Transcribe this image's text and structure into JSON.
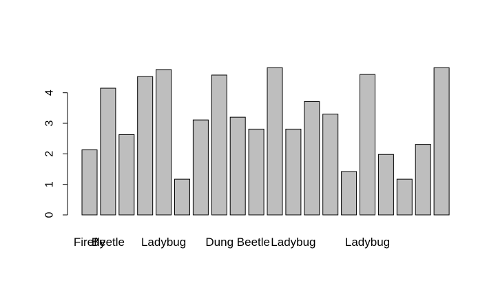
{
  "chart_data": {
    "type": "bar",
    "title": "",
    "xlabel": "",
    "ylabel": "",
    "ylim": [
      0,
      5
    ],
    "yticks": [
      0,
      1,
      2,
      3,
      4
    ],
    "bar_color": "#bebebe",
    "bar_border_color": "#000000",
    "categories": [
      "Firefly",
      "Beetle",
      "",
      "",
      "Ladybug",
      "",
      "",
      "",
      "Dung Beetle",
      "",
      "",
      "Ladybug",
      "",
      "",
      "",
      "Ladybug",
      "",
      "",
      "",
      ""
    ],
    "values": [
      2.13,
      4.15,
      2.63,
      4.53,
      4.76,
      1.17,
      3.11,
      4.58,
      3.2,
      2.81,
      4.82,
      2.81,
      3.71,
      3.3,
      1.42,
      4.6,
      1.98,
      1.17,
      2.31,
      4.82
    ]
  }
}
